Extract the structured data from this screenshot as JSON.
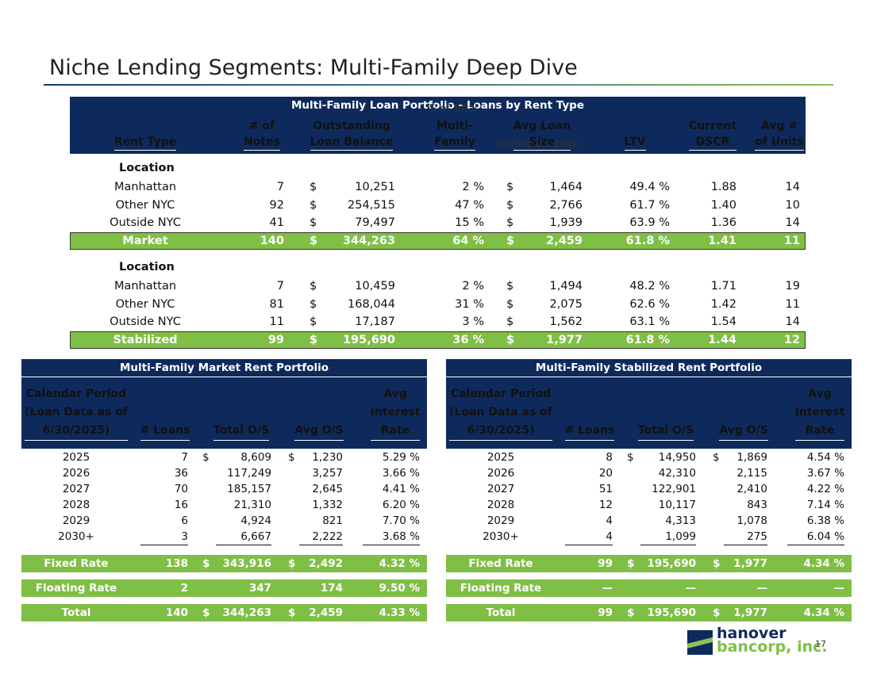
{
  "header": {
    "title": "Niche Lending Segments: Multi-Family Deep Dive"
  },
  "rent_table": {
    "title": "Multi-Family Loan Portfolio - Loans by Rent Type",
    "notes": [
      "% of Total",
      "($000s omitted)"
    ],
    "columns": [
      "Rent Type",
      "# of\nNotes",
      "Outstanding\nLoan Balance",
      "Multi-\nFamily",
      "Avg Loan\nSize",
      "LTV",
      "Current\nDSCR",
      "Avg #\nof Units"
    ],
    "sections": [
      {
        "label": "Location",
        "rows": [
          [
            "Manhattan",
            "7",
            "$",
            "10,251",
            "2 %",
            "$",
            "1,464",
            "49.4 %",
            "1.88",
            "14"
          ],
          [
            "Other NYC",
            "92",
            "$",
            "254,515",
            "47 %",
            "$",
            "2,766",
            "61.7 %",
            "1.40",
            "10"
          ],
          [
            "Outside NYC",
            "41",
            "$",
            "79,497",
            "15 %",
            "$",
            "1,939",
            "63.9 %",
            "1.36",
            "14"
          ]
        ],
        "total": [
          "Market",
          "140",
          "$",
          "344,263",
          "64 %",
          "$",
          "2,459",
          "61.8 %",
          "1.41",
          "11"
        ]
      },
      {
        "label": "Location",
        "rows": [
          [
            "Manhattan",
            "7",
            "$",
            "10,459",
            "2 %",
            "$",
            "1,494",
            "48.2 %",
            "1.71",
            "19"
          ],
          [
            "Other NYC",
            "81",
            "$",
            "168,044",
            "31 %",
            "$",
            "2,075",
            "62.6 %",
            "1.42",
            "11"
          ],
          [
            "Outside NYC",
            "11",
            "$",
            "17,187",
            "3 %",
            "$",
            "1,562",
            "63.1 %",
            "1.54",
            "14"
          ]
        ],
        "total": [
          "Stabilized",
          "99",
          "$",
          "195,690",
          "36 %",
          "$",
          "1,977",
          "61.8 %",
          "1.44",
          "12"
        ]
      }
    ]
  },
  "market_table": {
    "title": "Multi-Family Market Rent Portfolio",
    "columns": [
      "Calendar Period\n(Loan Data as of\n6/30/2025)",
      "# Loans",
      "Total O/S",
      "Avg O/S",
      "Avg\nInterest\nRate"
    ],
    "rows": [
      {
        "period": "2025",
        "loans": "7",
        "total_cur": "$",
        "total": "8,609",
        "avg_cur": "$",
        "avg": "1,230",
        "rate": "5.29 %"
      },
      {
        "period": "2026",
        "loans": "36",
        "total": "117,249",
        "avg": "3,257",
        "rate": "3.66 %"
      },
      {
        "period": "2027",
        "loans": "70",
        "total": "185,157",
        "avg": "2,645",
        "rate": "4.41 %"
      },
      {
        "period": "2028",
        "loans": "16",
        "total": "21,310",
        "avg": "1,332",
        "rate": "6.20 %"
      },
      {
        "period": "2029",
        "loans": "6",
        "total": "4,924",
        "avg": "821",
        "rate": "7.70 %"
      },
      {
        "period": "2030+",
        "loans": "3",
        "total": "6,667",
        "avg": "2,222",
        "rate": "3.68 %"
      }
    ],
    "totals": [
      {
        "period": "Fixed Rate",
        "loans": "138",
        "total_cur": "$",
        "total": "343,916",
        "avg_cur": "$",
        "avg": "2,492",
        "rate": "4.32 %"
      },
      {
        "period": "Floating Rate",
        "loans": "2",
        "total": "347",
        "avg": "174",
        "rate": "9.50 %"
      },
      {
        "period": "Total",
        "loans": "140",
        "total_cur": "$",
        "total": "344,263",
        "avg_cur": "$",
        "avg": "2,459",
        "rate": "4.33 %"
      }
    ]
  },
  "stabilized_table": {
    "title": "Multi-Family Stabilized Rent Portfolio",
    "columns": [
      "Calendar Period\n(Loan Data as of\n6/30/2025)",
      "# Loans",
      "Total O/S",
      "Avg O/S",
      "Avg\nInterest\nRate"
    ],
    "rows": [
      {
        "period": "2025",
        "loans": "8",
        "total_cur": "$",
        "total": "14,950",
        "avg_cur": "$",
        "avg": "1,869",
        "rate": "4.54 %"
      },
      {
        "period": "2026",
        "loans": "20",
        "total": "42,310",
        "avg": "2,115",
        "rate": "3.67 %"
      },
      {
        "period": "2027",
        "loans": "51",
        "total": "122,901",
        "avg": "2,410",
        "rate": "4.22 %"
      },
      {
        "period": "2028",
        "loans": "12",
        "total": "10,117",
        "avg": "843",
        "rate": "7.14 %"
      },
      {
        "period": "2029",
        "loans": "4",
        "total": "4,313",
        "avg": "1,078",
        "rate": "6.38 %"
      },
      {
        "period": "2030+",
        "loans": "4",
        "total": "1,099",
        "avg": "275",
        "rate": "6.04 %"
      }
    ],
    "totals": [
      {
        "period": "Fixed Rate",
        "loans": "99",
        "total_cur": "$",
        "total": "195,690",
        "avg_cur": "$",
        "avg": "1,977",
        "rate": "4.34 %"
      },
      {
        "period": "Floating Rate",
        "loans": "—",
        "total": "—",
        "avg": "—",
        "rate": "—"
      },
      {
        "period": "Total",
        "loans": "99",
        "total_cur": "$",
        "total": "195,690",
        "avg_cur": "$",
        "avg": "1,977",
        "rate": "4.34 %"
      }
    ]
  },
  "footer": {
    "logo_top": "hanover",
    "logo_bottom": "bancorp, inc.",
    "page_number": "17"
  }
}
